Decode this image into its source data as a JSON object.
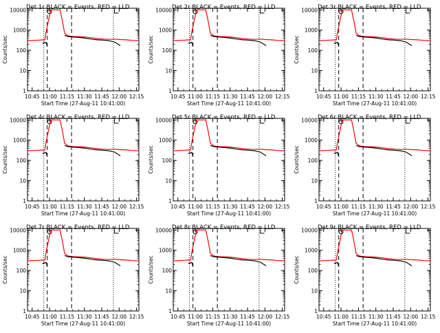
{
  "chart_data": {
    "type": "line",
    "x_time_ticks": [
      "10:45",
      "11:00",
      "11:15",
      "11:30",
      "11:45",
      "12:00",
      "12:15"
    ],
    "x_range_minutes_since_10_41": [
      0,
      96
    ],
    "y_scale": "log",
    "y_range": [
      1,
      12000
    ],
    "y_ticks": [
      "1",
      "10",
      "100",
      "1000",
      "10000"
    ],
    "ylabel": "Counts/sec",
    "xlabel": "Start Time (27-Aug-11 10:41:00)",
    "legend_text": "BLACK = Events, RED = LLD",
    "series_names": [
      "Events",
      "LLD"
    ],
    "colors": {
      "events": "#000000",
      "lld": "#ff0000"
    },
    "panels": [
      {
        "det": "Det 1r",
        "title": "Det 1r BLACK = Events, RED = LLD"
      },
      {
        "det": "Det 2r",
        "title": "Det 2r BLACK = Events, RED = LLD"
      },
      {
        "det": "Det 3r",
        "title": "Det 3r BLACK = Events, RED = LLD"
      },
      {
        "det": "Det 4r",
        "title": "Det 4r BLACK = Events, RED = LLD"
      },
      {
        "det": "Det 5r",
        "title": "Det 5r BLACK = Events, RED = LLD"
      },
      {
        "det": "Det 6r",
        "title": "Det 6r BLACK = Events, RED = LLD"
      },
      {
        "det": "Det 7r",
        "title": "Det 7r BLACK = Events, RED = LLD"
      },
      {
        "det": "Det 8r",
        "title": "Det 8r BLACK = Events, RED = LLD"
      },
      {
        "det": "Det 9r",
        "title": "Det 9r BLACK = Events, RED = LLD"
      }
    ],
    "series_points": {
      "minutes": [
        0,
        5,
        10,
        13,
        14,
        15,
        16,
        20,
        25,
        28,
        30,
        32,
        35,
        40,
        45,
        50,
        55,
        60,
        65,
        70,
        75,
        80,
        85,
        90,
        96
      ],
      "lld": [
        300,
        310,
        320,
        330,
        320,
        330,
        800,
        10000,
        10000,
        10000,
        3000,
        700,
        520,
        480,
        470,
        450,
        420,
        380,
        360,
        350,
        360,
        340,
        330,
        310,
        300
      ],
      "events_segment_1": {
        "minutes": [
          13,
          14,
          15,
          16,
          17
        ],
        "values": [
          220,
          230,
          240,
          250,
          160
        ]
      },
      "events_segment_2": {
        "minutes": [
          32,
          35,
          40,
          45,
          50,
          55,
          60,
          65,
          70,
          75,
          80
        ],
        "values": [
          550,
          480,
          450,
          430,
          400,
          360,
          330,
          320,
          300,
          260,
          170
        ]
      }
    },
    "dotted_vertical_lines_minutes": [
      14,
      74
    ],
    "dashed_vertical_lines_minutes": [
      17,
      38
    ]
  }
}
